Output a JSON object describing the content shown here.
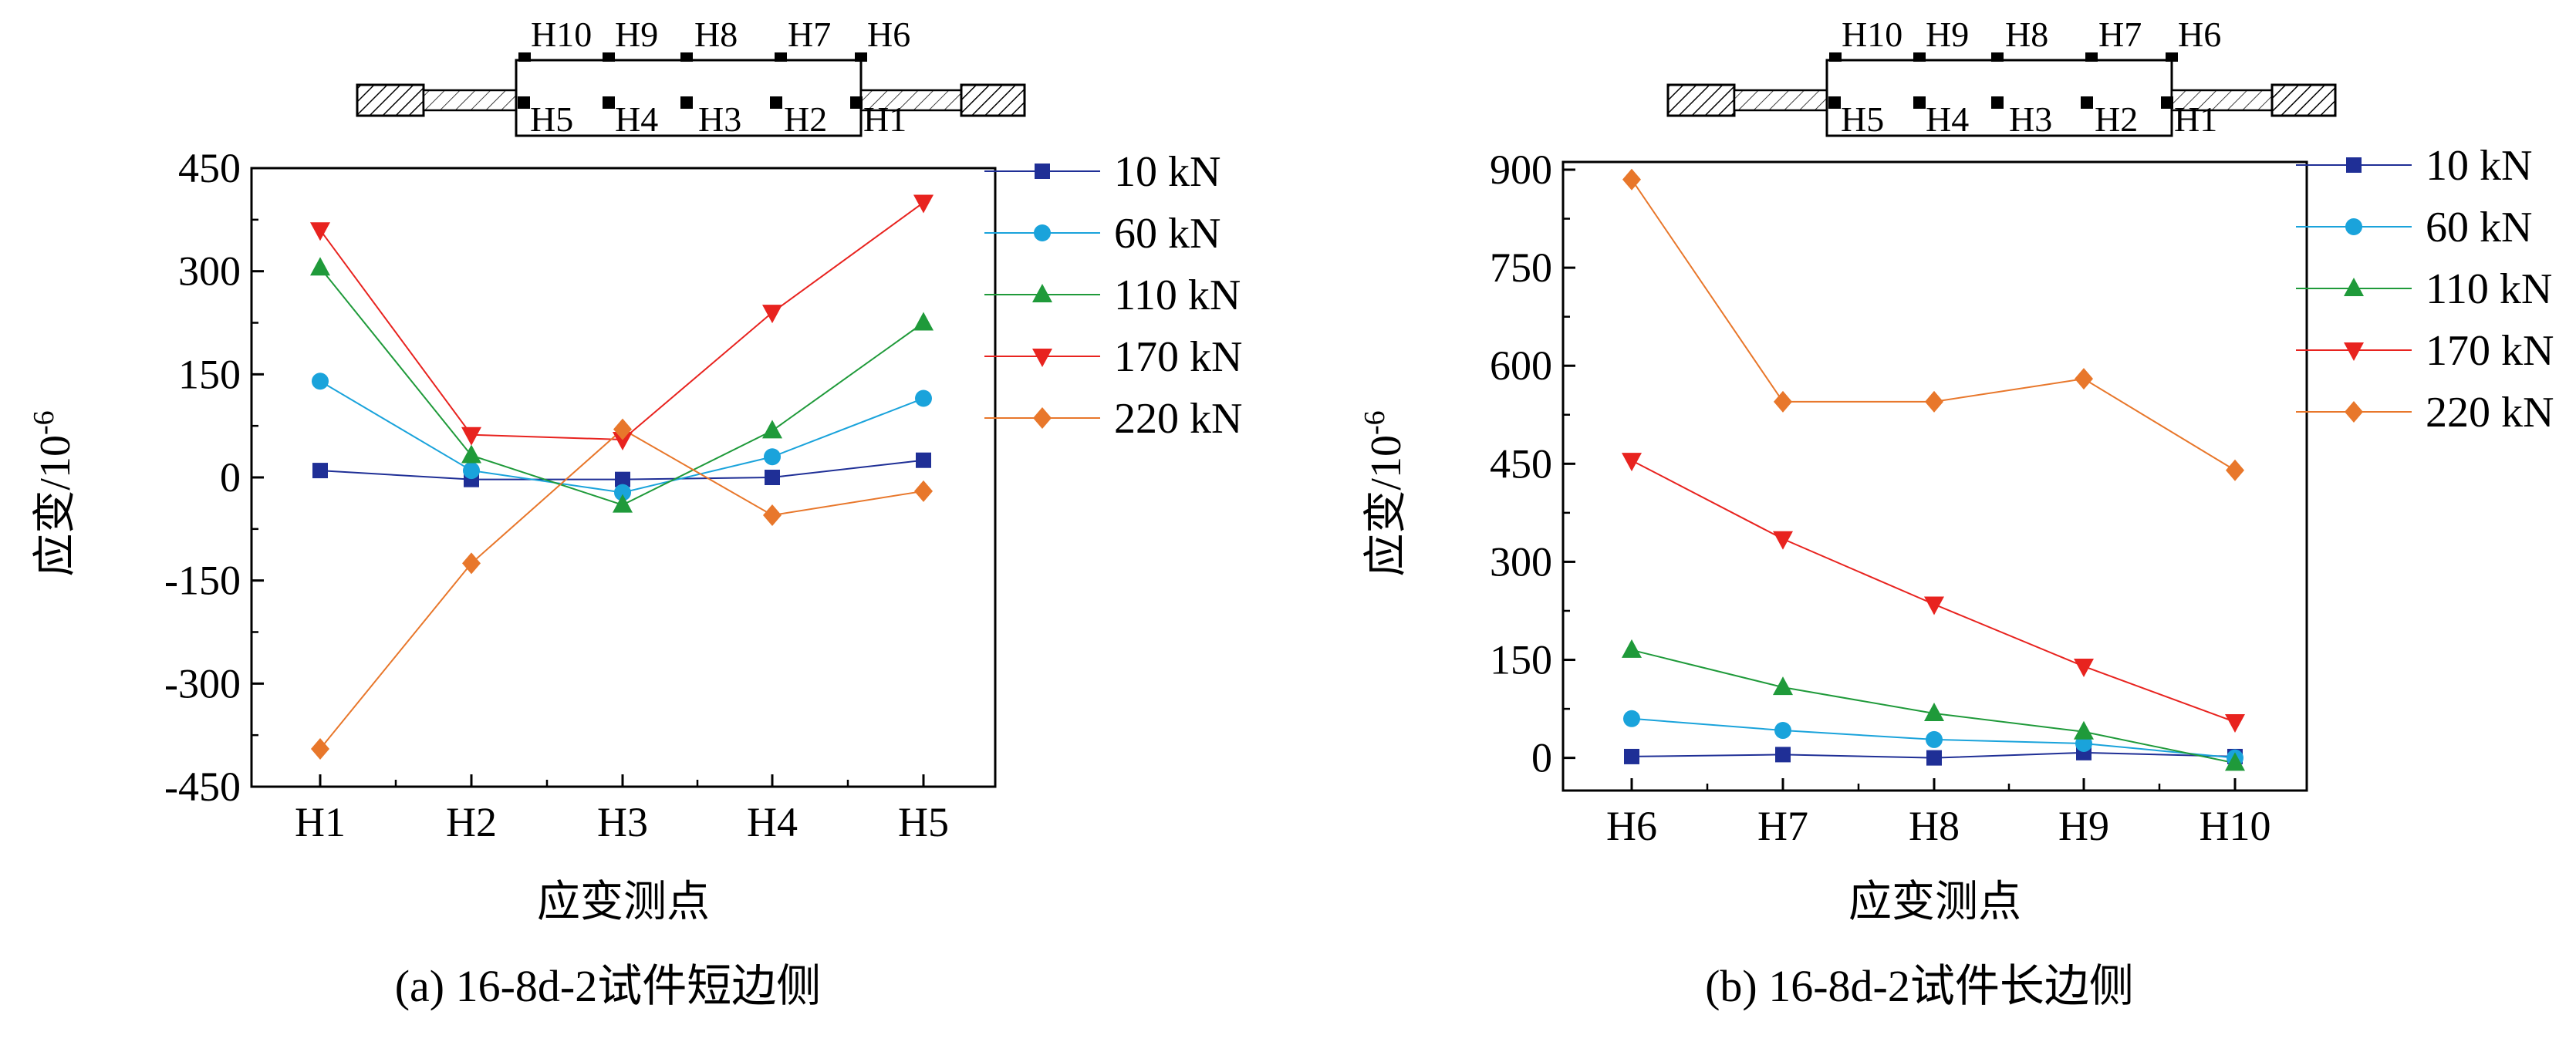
{
  "colors": {
    "10 kN": "#1f2f96",
    "60 kN": "#1aa3db",
    "110 kN": "#1f9a3a",
    "170 kN": "#e8231f",
    "220 kN": "#e8772b"
  },
  "chart_data": [
    {
      "type": "line",
      "caption": "(a) 16-8d-2试件短边侧",
      "xlabel": "应变测点",
      "ylabel": "应变/10",
      "ylabel_exp": "-6",
      "categories": [
        "H1",
        "H2",
        "H3",
        "H4",
        "H5"
      ],
      "ylim": [
        -450,
        450
      ],
      "yticks": [
        "450",
        "300",
        "150",
        "0",
        "-150",
        "-300",
        "-450"
      ],
      "legend_position": "right",
      "series": [
        {
          "name": "10 kN",
          "marker": "square",
          "values": [
            10,
            -3,
            -3,
            0,
            25
          ]
        },
        {
          "name": "60 kN",
          "marker": "circle",
          "values": [
            140,
            10,
            -22,
            30,
            115
          ]
        },
        {
          "name": "110 kN",
          "marker": "triangle-up",
          "values": [
            305,
            32,
            -40,
            68,
            225
          ]
        },
        {
          "name": "170 kN",
          "marker": "triangle-down",
          "values": [
            360,
            62,
            55,
            240,
            400
          ]
        },
        {
          "name": "220 kN",
          "marker": "diamond",
          "values": [
            -395,
            -125,
            70,
            -55,
            -20
          ]
        }
      ],
      "diagram": {
        "top_labels": [
          "H10",
          "H9",
          "H8",
          "H7",
          "H6"
        ],
        "bottom_labels": [
          "H5",
          "H4",
          "H3",
          "H2",
          "H1"
        ]
      }
    },
    {
      "type": "line",
      "caption": "(b) 16-8d-2试件长边侧",
      "xlabel": "应变测点",
      "ylabel": "应变/10",
      "ylabel_exp": "-6",
      "categories": [
        "H6",
        "H7",
        "H8",
        "H9",
        "H10"
      ],
      "ylim": [
        -50,
        900
      ],
      "yticks": [
        "900",
        "750",
        "600",
        "450",
        "300",
        "150",
        "0"
      ],
      "legend_position": "right",
      "series": [
        {
          "name": "10 kN",
          "marker": "square",
          "values": [
            2,
            5,
            0,
            8,
            2
          ]
        },
        {
          "name": "60 kN",
          "marker": "circle",
          "values": [
            60,
            42,
            28,
            22,
            0
          ]
        },
        {
          "name": "110 kN",
          "marker": "triangle-up",
          "values": [
            165,
            108,
            68,
            40,
            -8
          ]
        },
        {
          "name": "170 kN",
          "marker": "triangle-down",
          "values": [
            455,
            335,
            235,
            140,
            55
          ]
        },
        {
          "name": "220 kN",
          "marker": "diamond",
          "values": [
            885,
            545,
            545,
            580,
            440
          ]
        }
      ],
      "diagram": {
        "top_labels": [
          "H10",
          "H9",
          "H8",
          "H7",
          "H6"
        ],
        "bottom_labels": [
          "H5",
          "H4",
          "H3",
          "H2",
          "H1"
        ]
      }
    }
  ]
}
